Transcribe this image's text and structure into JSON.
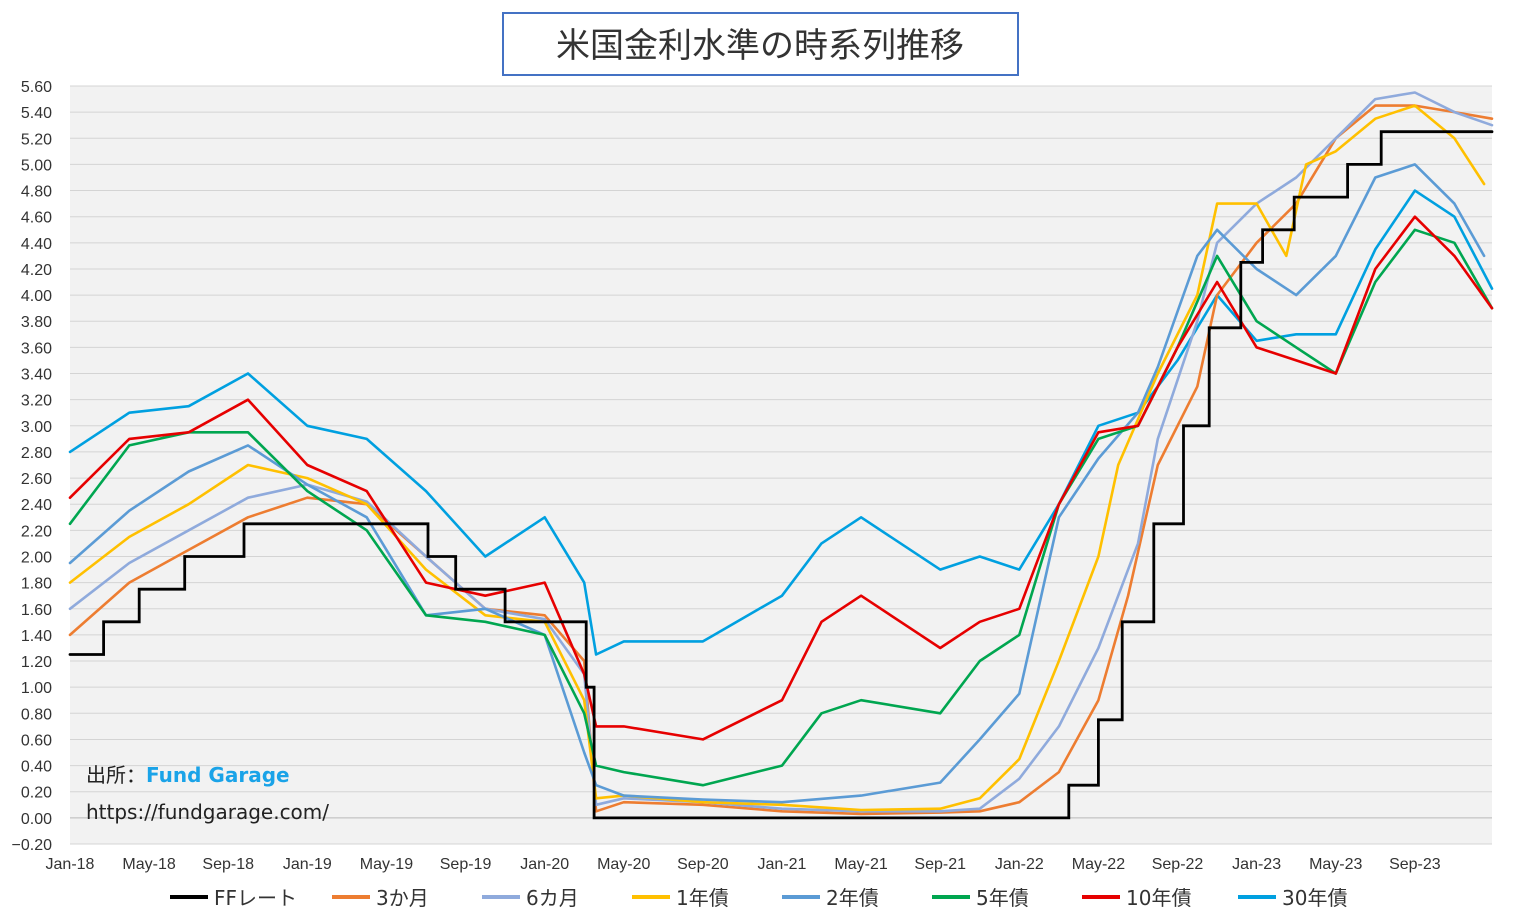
{
  "chart_data": {
    "type": "line",
    "title": "米国金利水準の時系列推移",
    "xlabel": "",
    "ylabel": "",
    "ylim": [
      -0.2,
      5.6
    ],
    "y_ticks": [
      "5.60",
      "5.40",
      "5.20",
      "5.00",
      "4.80",
      "4.60",
      "4.40",
      "4.20",
      "4.00",
      "3.80",
      "3.60",
      "3.40",
      "3.20",
      "3.00",
      "2.80",
      "2.60",
      "2.40",
      "2.20",
      "2.00",
      "1.80",
      "1.60",
      "1.40",
      "1.20",
      "1.00",
      "0.80",
      "0.60",
      "0.40",
      "0.20",
      "0.00",
      "−0.20"
    ],
    "x_ticks": [
      "Jan-18",
      "May-18",
      "Sep-18",
      "Jan-19",
      "May-19",
      "Sep-19",
      "Jan-20",
      "May-20",
      "Sep-20",
      "Jan-21",
      "May-21",
      "Sep-21",
      "Jan-22",
      "May-22",
      "Sep-22",
      "Jan-23",
      "May-23",
      "Sep-23"
    ],
    "x_range_months": [
      0,
      71.9
    ],
    "grid": true,
    "legend_position": "bottom",
    "series": [
      {
        "name": "FFレート",
        "color": "#000000",
        "step": true,
        "points": [
          [
            0,
            1.25
          ],
          [
            1.7,
            1.25
          ],
          [
            1.7,
            1.5
          ],
          [
            3.5,
            1.5
          ],
          [
            3.5,
            1.75
          ],
          [
            5.8,
            1.75
          ],
          [
            5.8,
            2.0
          ],
          [
            8.8,
            2.0
          ],
          [
            8.8,
            2.25
          ],
          [
            11.6,
            2.25
          ],
          [
            18.1,
            2.25
          ],
          [
            18.1,
            2.0
          ],
          [
            19.5,
            2.0
          ],
          [
            19.5,
            1.75
          ],
          [
            22.0,
            1.75
          ],
          [
            22.0,
            1.5
          ],
          [
            26.1,
            1.5
          ],
          [
            26.1,
            1.0
          ],
          [
            26.5,
            1.0
          ],
          [
            26.5,
            0.0
          ],
          [
            50.5,
            0.0
          ],
          [
            50.5,
            0.25
          ],
          [
            52.0,
            0.25
          ],
          [
            52.0,
            0.75
          ],
          [
            53.2,
            0.75
          ],
          [
            53.2,
            1.5
          ],
          [
            54.8,
            1.5
          ],
          [
            54.8,
            2.25
          ],
          [
            56.3,
            2.25
          ],
          [
            56.3,
            3.0
          ],
          [
            57.6,
            3.0
          ],
          [
            57.6,
            3.75
          ],
          [
            59.2,
            3.75
          ],
          [
            59.2,
            4.25
          ],
          [
            60.3,
            4.25
          ],
          [
            60.3,
            4.5
          ],
          [
            61.9,
            4.5
          ],
          [
            61.9,
            4.75
          ],
          [
            64.6,
            4.75
          ],
          [
            64.6,
            5.0
          ],
          [
            66.3,
            5.0
          ],
          [
            66.3,
            5.25
          ],
          [
            71.9,
            5.25
          ]
        ]
      },
      {
        "name": "3か月",
        "color": "#ed7d31",
        "points": [
          [
            0,
            1.4
          ],
          [
            3,
            1.8
          ],
          [
            6,
            2.05
          ],
          [
            9,
            2.3
          ],
          [
            12,
            2.45
          ],
          [
            15,
            2.4
          ],
          [
            18,
            2.0
          ],
          [
            21,
            1.6
          ],
          [
            24,
            1.55
          ],
          [
            26,
            1.2
          ],
          [
            26.6,
            0.05
          ],
          [
            28,
            0.12
          ],
          [
            32,
            0.1
          ],
          [
            36,
            0.05
          ],
          [
            40,
            0.03
          ],
          [
            44,
            0.04
          ],
          [
            46,
            0.05
          ],
          [
            48,
            0.12
          ],
          [
            50,
            0.35
          ],
          [
            52,
            0.9
          ],
          [
            53.5,
            1.7
          ],
          [
            55,
            2.7
          ],
          [
            57,
            3.3
          ],
          [
            58,
            4.0
          ],
          [
            60,
            4.4
          ],
          [
            62,
            4.7
          ],
          [
            64,
            5.2
          ],
          [
            66,
            5.45
          ],
          [
            68,
            5.45
          ],
          [
            70,
            5.4
          ],
          [
            71.9,
            5.35
          ]
        ]
      },
      {
        "name": "6カ月",
        "color": "#8faadc",
        "points": [
          [
            0,
            1.6
          ],
          [
            3,
            1.95
          ],
          [
            6,
            2.2
          ],
          [
            9,
            2.45
          ],
          [
            12,
            2.55
          ],
          [
            15,
            2.42
          ],
          [
            18,
            2.0
          ],
          [
            21,
            1.6
          ],
          [
            24,
            1.52
          ],
          [
            26,
            1.1
          ],
          [
            26.6,
            0.1
          ],
          [
            28,
            0.15
          ],
          [
            32,
            0.12
          ],
          [
            36,
            0.07
          ],
          [
            40,
            0.05
          ],
          [
            44,
            0.05
          ],
          [
            46,
            0.07
          ],
          [
            48,
            0.3
          ],
          [
            50,
            0.7
          ],
          [
            52,
            1.3
          ],
          [
            54,
            2.1
          ],
          [
            55,
            2.9
          ],
          [
            57,
            3.8
          ],
          [
            58,
            4.4
          ],
          [
            60,
            4.7
          ],
          [
            62,
            4.9
          ],
          [
            64,
            5.2
          ],
          [
            66,
            5.5
          ],
          [
            68,
            5.55
          ],
          [
            70,
            5.4
          ],
          [
            71.9,
            5.3
          ]
        ]
      },
      {
        "name": "1年債",
        "color": "#ffc000",
        "points": [
          [
            0,
            1.8
          ],
          [
            3,
            2.15
          ],
          [
            6,
            2.4
          ],
          [
            9,
            2.7
          ],
          [
            12,
            2.6
          ],
          [
            15,
            2.4
          ],
          [
            18,
            1.9
          ],
          [
            21,
            1.55
          ],
          [
            24,
            1.5
          ],
          [
            26,
            0.9
          ],
          [
            26.6,
            0.15
          ],
          [
            28,
            0.17
          ],
          [
            32,
            0.12
          ],
          [
            36,
            0.1
          ],
          [
            40,
            0.06
          ],
          [
            44,
            0.07
          ],
          [
            46,
            0.15
          ],
          [
            48,
            0.45
          ],
          [
            50,
            1.2
          ],
          [
            52,
            2.0
          ],
          [
            53,
            2.7
          ],
          [
            55,
            3.4
          ],
          [
            57,
            4.0
          ],
          [
            58,
            4.7
          ],
          [
            60,
            4.7
          ],
          [
            61.5,
            4.3
          ],
          [
            62.5,
            5.0
          ],
          [
            64,
            5.1
          ],
          [
            66,
            5.35
          ],
          [
            68,
            5.45
          ],
          [
            70,
            5.2
          ],
          [
            71.5,
            4.85
          ]
        ]
      },
      {
        "name": "2年債",
        "color": "#5b9bd5",
        "points": [
          [
            0,
            1.95
          ],
          [
            3,
            2.35
          ],
          [
            6,
            2.65
          ],
          [
            9,
            2.85
          ],
          [
            12,
            2.55
          ],
          [
            15,
            2.3
          ],
          [
            18,
            1.55
          ],
          [
            21,
            1.6
          ],
          [
            24,
            1.4
          ],
          [
            26,
            0.5
          ],
          [
            26.6,
            0.25
          ],
          [
            28,
            0.17
          ],
          [
            32,
            0.14
          ],
          [
            36,
            0.12
          ],
          [
            40,
            0.17
          ],
          [
            44,
            0.27
          ],
          [
            46,
            0.6
          ],
          [
            48,
            0.95
          ],
          [
            50,
            2.3
          ],
          [
            52,
            2.75
          ],
          [
            54,
            3.1
          ],
          [
            55,
            3.45
          ],
          [
            57,
            4.3
          ],
          [
            58,
            4.5
          ],
          [
            60,
            4.2
          ],
          [
            62,
            4.0
          ],
          [
            64,
            4.3
          ],
          [
            66,
            4.9
          ],
          [
            68,
            5.0
          ],
          [
            70,
            4.7
          ],
          [
            71.5,
            4.3
          ]
        ]
      },
      {
        "name": "5年債",
        "color": "#00a650",
        "points": [
          [
            0,
            2.25
          ],
          [
            3,
            2.85
          ],
          [
            6,
            2.95
          ],
          [
            9,
            2.95
          ],
          [
            12,
            2.5
          ],
          [
            15,
            2.2
          ],
          [
            18,
            1.55
          ],
          [
            21,
            1.5
          ],
          [
            24,
            1.4
          ],
          [
            26,
            0.8
          ],
          [
            26.6,
            0.4
          ],
          [
            28,
            0.35
          ],
          [
            32,
            0.25
          ],
          [
            36,
            0.4
          ],
          [
            38,
            0.8
          ],
          [
            40,
            0.9
          ],
          [
            44,
            0.8
          ],
          [
            46,
            1.2
          ],
          [
            48,
            1.4
          ],
          [
            50,
            2.4
          ],
          [
            52,
            2.9
          ],
          [
            54,
            3.0
          ],
          [
            56,
            3.6
          ],
          [
            58,
            4.3
          ],
          [
            60,
            3.8
          ],
          [
            62,
            3.6
          ],
          [
            64,
            3.4
          ],
          [
            66,
            4.1
          ],
          [
            68,
            4.5
          ],
          [
            70,
            4.4
          ],
          [
            71.9,
            3.9
          ]
        ]
      },
      {
        "name": "10年債",
        "color": "#e60000",
        "points": [
          [
            0,
            2.45
          ],
          [
            3,
            2.9
          ],
          [
            6,
            2.95
          ],
          [
            9,
            3.2
          ],
          [
            12,
            2.7
          ],
          [
            15,
            2.5
          ],
          [
            18,
            1.8
          ],
          [
            21,
            1.7
          ],
          [
            24,
            1.8
          ],
          [
            26,
            1.1
          ],
          [
            26.6,
            0.7
          ],
          [
            28,
            0.7
          ],
          [
            32,
            0.6
          ],
          [
            36,
            0.9
          ],
          [
            38,
            1.5
          ],
          [
            40,
            1.7
          ],
          [
            44,
            1.3
          ],
          [
            46,
            1.5
          ],
          [
            48,
            1.6
          ],
          [
            50,
            2.4
          ],
          [
            52,
            2.95
          ],
          [
            54,
            3.0
          ],
          [
            56,
            3.6
          ],
          [
            58,
            4.1
          ],
          [
            60,
            3.6
          ],
          [
            62,
            3.5
          ],
          [
            64,
            3.4
          ],
          [
            66,
            4.2
          ],
          [
            68,
            4.6
          ],
          [
            70,
            4.3
          ],
          [
            71.9,
            3.9
          ]
        ]
      },
      {
        "name": "30年債",
        "color": "#00a0e0",
        "points": [
          [
            0,
            2.8
          ],
          [
            3,
            3.1
          ],
          [
            6,
            3.15
          ],
          [
            9,
            3.4
          ],
          [
            12,
            3.0
          ],
          [
            15,
            2.9
          ],
          [
            18,
            2.5
          ],
          [
            21,
            2.0
          ],
          [
            24,
            2.3
          ],
          [
            26,
            1.8
          ],
          [
            26.6,
            1.25
          ],
          [
            28,
            1.35
          ],
          [
            32,
            1.35
          ],
          [
            36,
            1.7
          ],
          [
            38,
            2.1
          ],
          [
            40,
            2.3
          ],
          [
            44,
            1.9
          ],
          [
            46,
            2.0
          ],
          [
            48,
            1.9
          ],
          [
            50,
            2.4
          ],
          [
            52,
            3.0
          ],
          [
            54,
            3.1
          ],
          [
            56,
            3.5
          ],
          [
            58,
            4.0
          ],
          [
            60,
            3.65
          ],
          [
            62,
            3.7
          ],
          [
            64,
            3.7
          ],
          [
            66,
            4.35
          ],
          [
            68,
            4.8
          ],
          [
            70,
            4.6
          ],
          [
            71.9,
            4.05
          ]
        ]
      }
    ]
  },
  "source": {
    "prefix": "出所：",
    "name": "Fund Garage",
    "url": "https://fundgarage.com/"
  }
}
